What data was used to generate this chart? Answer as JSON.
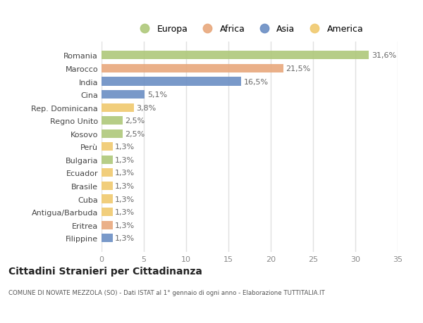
{
  "countries": [
    "Filippine",
    "Eritrea",
    "Antigua/Barbuda",
    "Cuba",
    "Brasile",
    "Ecuador",
    "Bulgaria",
    "Perù",
    "Kosovo",
    "Regno Unito",
    "Rep. Dominicana",
    "Cina",
    "India",
    "Marocco",
    "Romania"
  ],
  "values": [
    1.3,
    1.3,
    1.3,
    1.3,
    1.3,
    1.3,
    1.3,
    1.3,
    2.5,
    2.5,
    3.8,
    5.1,
    16.5,
    21.5,
    31.6
  ],
  "labels": [
    "1,3%",
    "1,3%",
    "1,3%",
    "1,3%",
    "1,3%",
    "1,3%",
    "1,3%",
    "1,3%",
    "2,5%",
    "2,5%",
    "3,8%",
    "5,1%",
    "16,5%",
    "21,5%",
    "31,6%"
  ],
  "continents": [
    "Asia",
    "Africa",
    "America",
    "America",
    "America",
    "America",
    "Europa",
    "America",
    "Europa",
    "Europa",
    "America",
    "Asia",
    "Asia",
    "Africa",
    "Europa"
  ],
  "colors": {
    "Europa": "#aec87a",
    "Africa": "#e8a87c",
    "Asia": "#6b8ec4",
    "America": "#f0c96e"
  },
  "bg_color": "#ffffff",
  "plot_bg_color": "#ffffff",
  "title": "Cittadini Stranieri per Cittadinanza",
  "subtitle": "COMUNE DI NOVATE MEZZOLA (SO) - Dati ISTAT al 1° gennaio di ogni anno - Elaborazione TUTTITALIA.IT",
  "xlim": [
    0,
    35
  ],
  "xticks": [
    0,
    5,
    10,
    15,
    20,
    25,
    30,
    35
  ],
  "legend_entries": [
    "Europa",
    "Africa",
    "Asia",
    "America"
  ],
  "grid_color": "#e0e0e0"
}
